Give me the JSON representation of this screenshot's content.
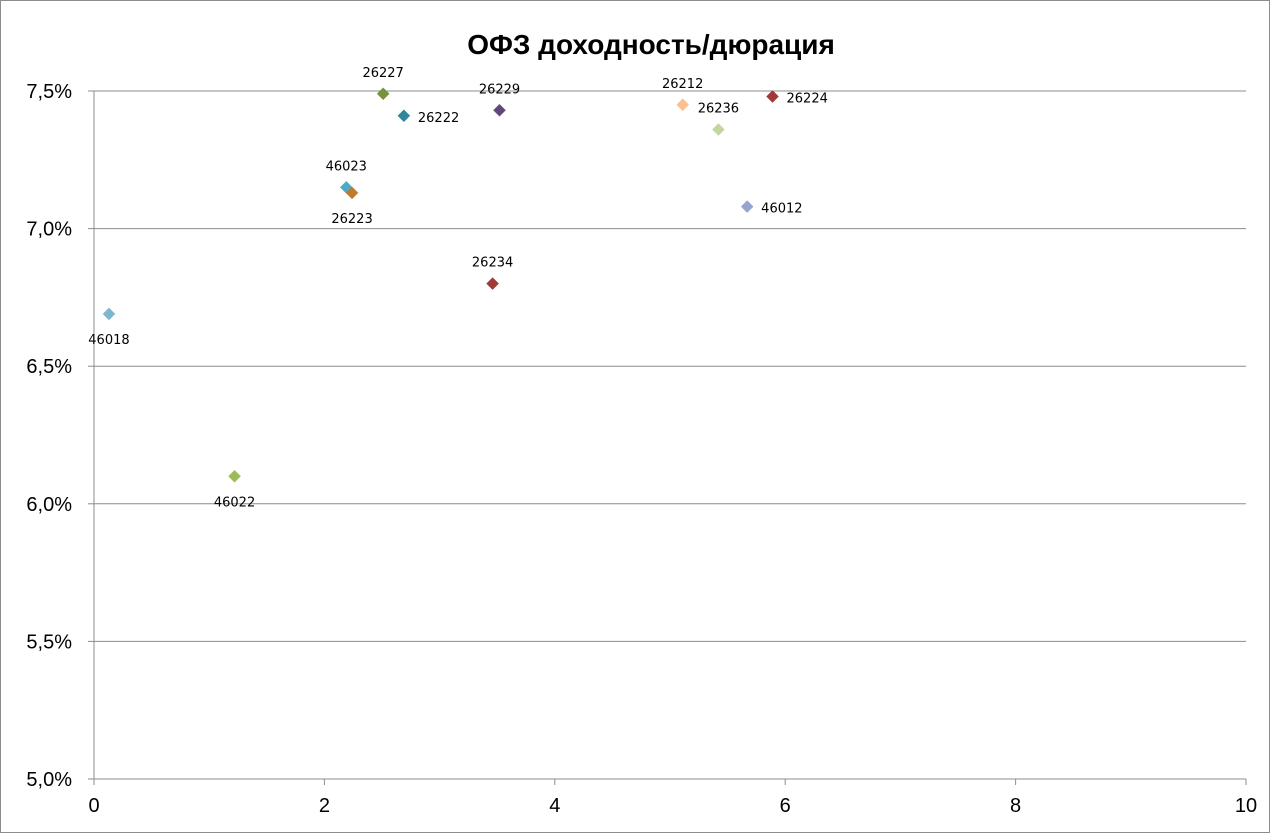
{
  "chart_data": {
    "type": "scatter",
    "title": "ОФЗ доходность/дюрация",
    "xlabel": "",
    "ylabel": "",
    "xlim": [
      0,
      10
    ],
    "ylim": [
      0.05,
      0.075
    ],
    "x_ticks": [
      0,
      2,
      4,
      6,
      8,
      10
    ],
    "x_tick_labels": [
      "0",
      "2",
      "4",
      "6",
      "8",
      "10"
    ],
    "y_ticks": [
      0.05,
      0.055,
      0.06,
      0.065,
      0.07,
      0.075
    ],
    "y_tick_labels": [
      "5,0%",
      "5,5%",
      "6,0%",
      "6,5%",
      "7,0%",
      "7,5%"
    ],
    "grid": "horizontal",
    "legend": "none",
    "points": [
      {
        "label": "46018",
        "x": 0.13,
        "y": 0.0669,
        "color": "#7fb6cf",
        "label_pos": "below"
      },
      {
        "label": "46022",
        "x": 1.22,
        "y": 0.061,
        "color": "#9bbb59",
        "label_pos": "below"
      },
      {
        "label": "46023",
        "x": 2.19,
        "y": 0.0715,
        "color": "#4bacc6",
        "label_pos": "above"
      },
      {
        "label": "26223",
        "x": 2.24,
        "y": 0.0713,
        "color": "#c07a30",
        "label_pos": "below"
      },
      {
        "label": "26227",
        "x": 2.51,
        "y": 0.0749,
        "color": "#77933c",
        "label_pos": "above"
      },
      {
        "label": "26222",
        "x": 2.69,
        "y": 0.0741,
        "color": "#31859c",
        "label_pos": "right"
      },
      {
        "label": "26234",
        "x": 3.46,
        "y": 0.068,
        "color": "#a23a3a",
        "label_pos": "above"
      },
      {
        "label": "26229",
        "x": 3.52,
        "y": 0.0743,
        "color": "#60497a",
        "label_pos": "above"
      },
      {
        "label": "26212",
        "x": 5.11,
        "y": 0.0745,
        "color": "#fac090",
        "label_pos": "above"
      },
      {
        "label": "26236",
        "x": 5.42,
        "y": 0.0736,
        "color": "#c3d69b",
        "label_pos": "above"
      },
      {
        "label": "46012",
        "x": 5.67,
        "y": 0.0708,
        "color": "#95a5cf",
        "label_pos": "right"
      },
      {
        "label": "26224",
        "x": 5.89,
        "y": 0.0748,
        "color": "#a23a3a",
        "label_pos": "right"
      }
    ]
  }
}
